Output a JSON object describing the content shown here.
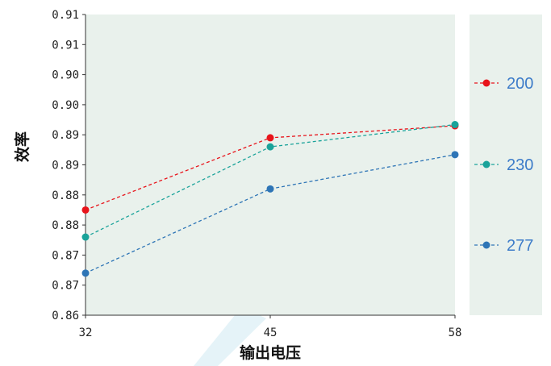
{
  "chart_data": {
    "type": "line",
    "title": "",
    "xlabel": "输出电压",
    "ylabel": "效率",
    "x": [
      32,
      45,
      58
    ],
    "x_ticks": [
      "32",
      "45",
      "58"
    ],
    "y_tick_labels": [
      "0.86",
      "0.87",
      "0.87",
      "0.88",
      "0.88",
      "0.89",
      "0.89",
      "0.90",
      "0.90",
      "0.91",
      "0.91"
    ],
    "ylim": [
      0.86,
      0.91
    ],
    "grid": false,
    "legend_position": "right",
    "plot_background": "#e9f1ec",
    "series": [
      {
        "name": "200",
        "color": "#e8141b",
        "values": [
          0.8775,
          0.8895,
          0.8915
        ]
      },
      {
        "name": "230",
        "color": "#1aa39a",
        "values": [
          0.873,
          0.888,
          0.8917
        ]
      },
      {
        "name": "277",
        "color": "#2e75b6",
        "values": [
          0.867,
          0.881,
          0.8867
        ]
      }
    ]
  }
}
